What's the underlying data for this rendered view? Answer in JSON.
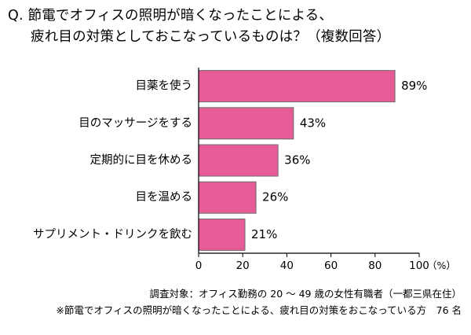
{
  "title": {
    "line1": "Q. 節電でオフィスの照明が暗くなったことによる、",
    "line2": "疲れ目の対策としておこなっているものは？（複数回答）"
  },
  "footnotes": {
    "survey": "調査対象：オフィス勤務の 20 ～ 49 歳の女性有職者（一都三県在住）",
    "sample": "※節電でオフィスの照明が暗くなったことによる、疲れ目の対策をおこなっている方　76 名"
  },
  "chart_data": {
    "type": "bar",
    "orientation": "horizontal",
    "categories": [
      "目薬を使う",
      "目のマッサージをする",
      "定期的に目を休める",
      "目を温める",
      "サプリメント・ドリンクを飲む"
    ],
    "values": [
      89,
      43,
      36,
      26,
      21
    ],
    "value_labels": [
      "89%",
      "43%",
      "36%",
      "26%",
      "21%"
    ],
    "xlim": [
      0,
      100
    ],
    "xticks": [
      0,
      20,
      40,
      60,
      80,
      100
    ],
    "xtick_labels": [
      "0",
      "20",
      "40",
      "60",
      "80",
      "100"
    ],
    "x_unit": "（%）",
    "grid": false,
    "colors": {
      "bar": "#e75b97",
      "bar_edge": "#6b6b6b",
      "axis": "#000000"
    }
  }
}
